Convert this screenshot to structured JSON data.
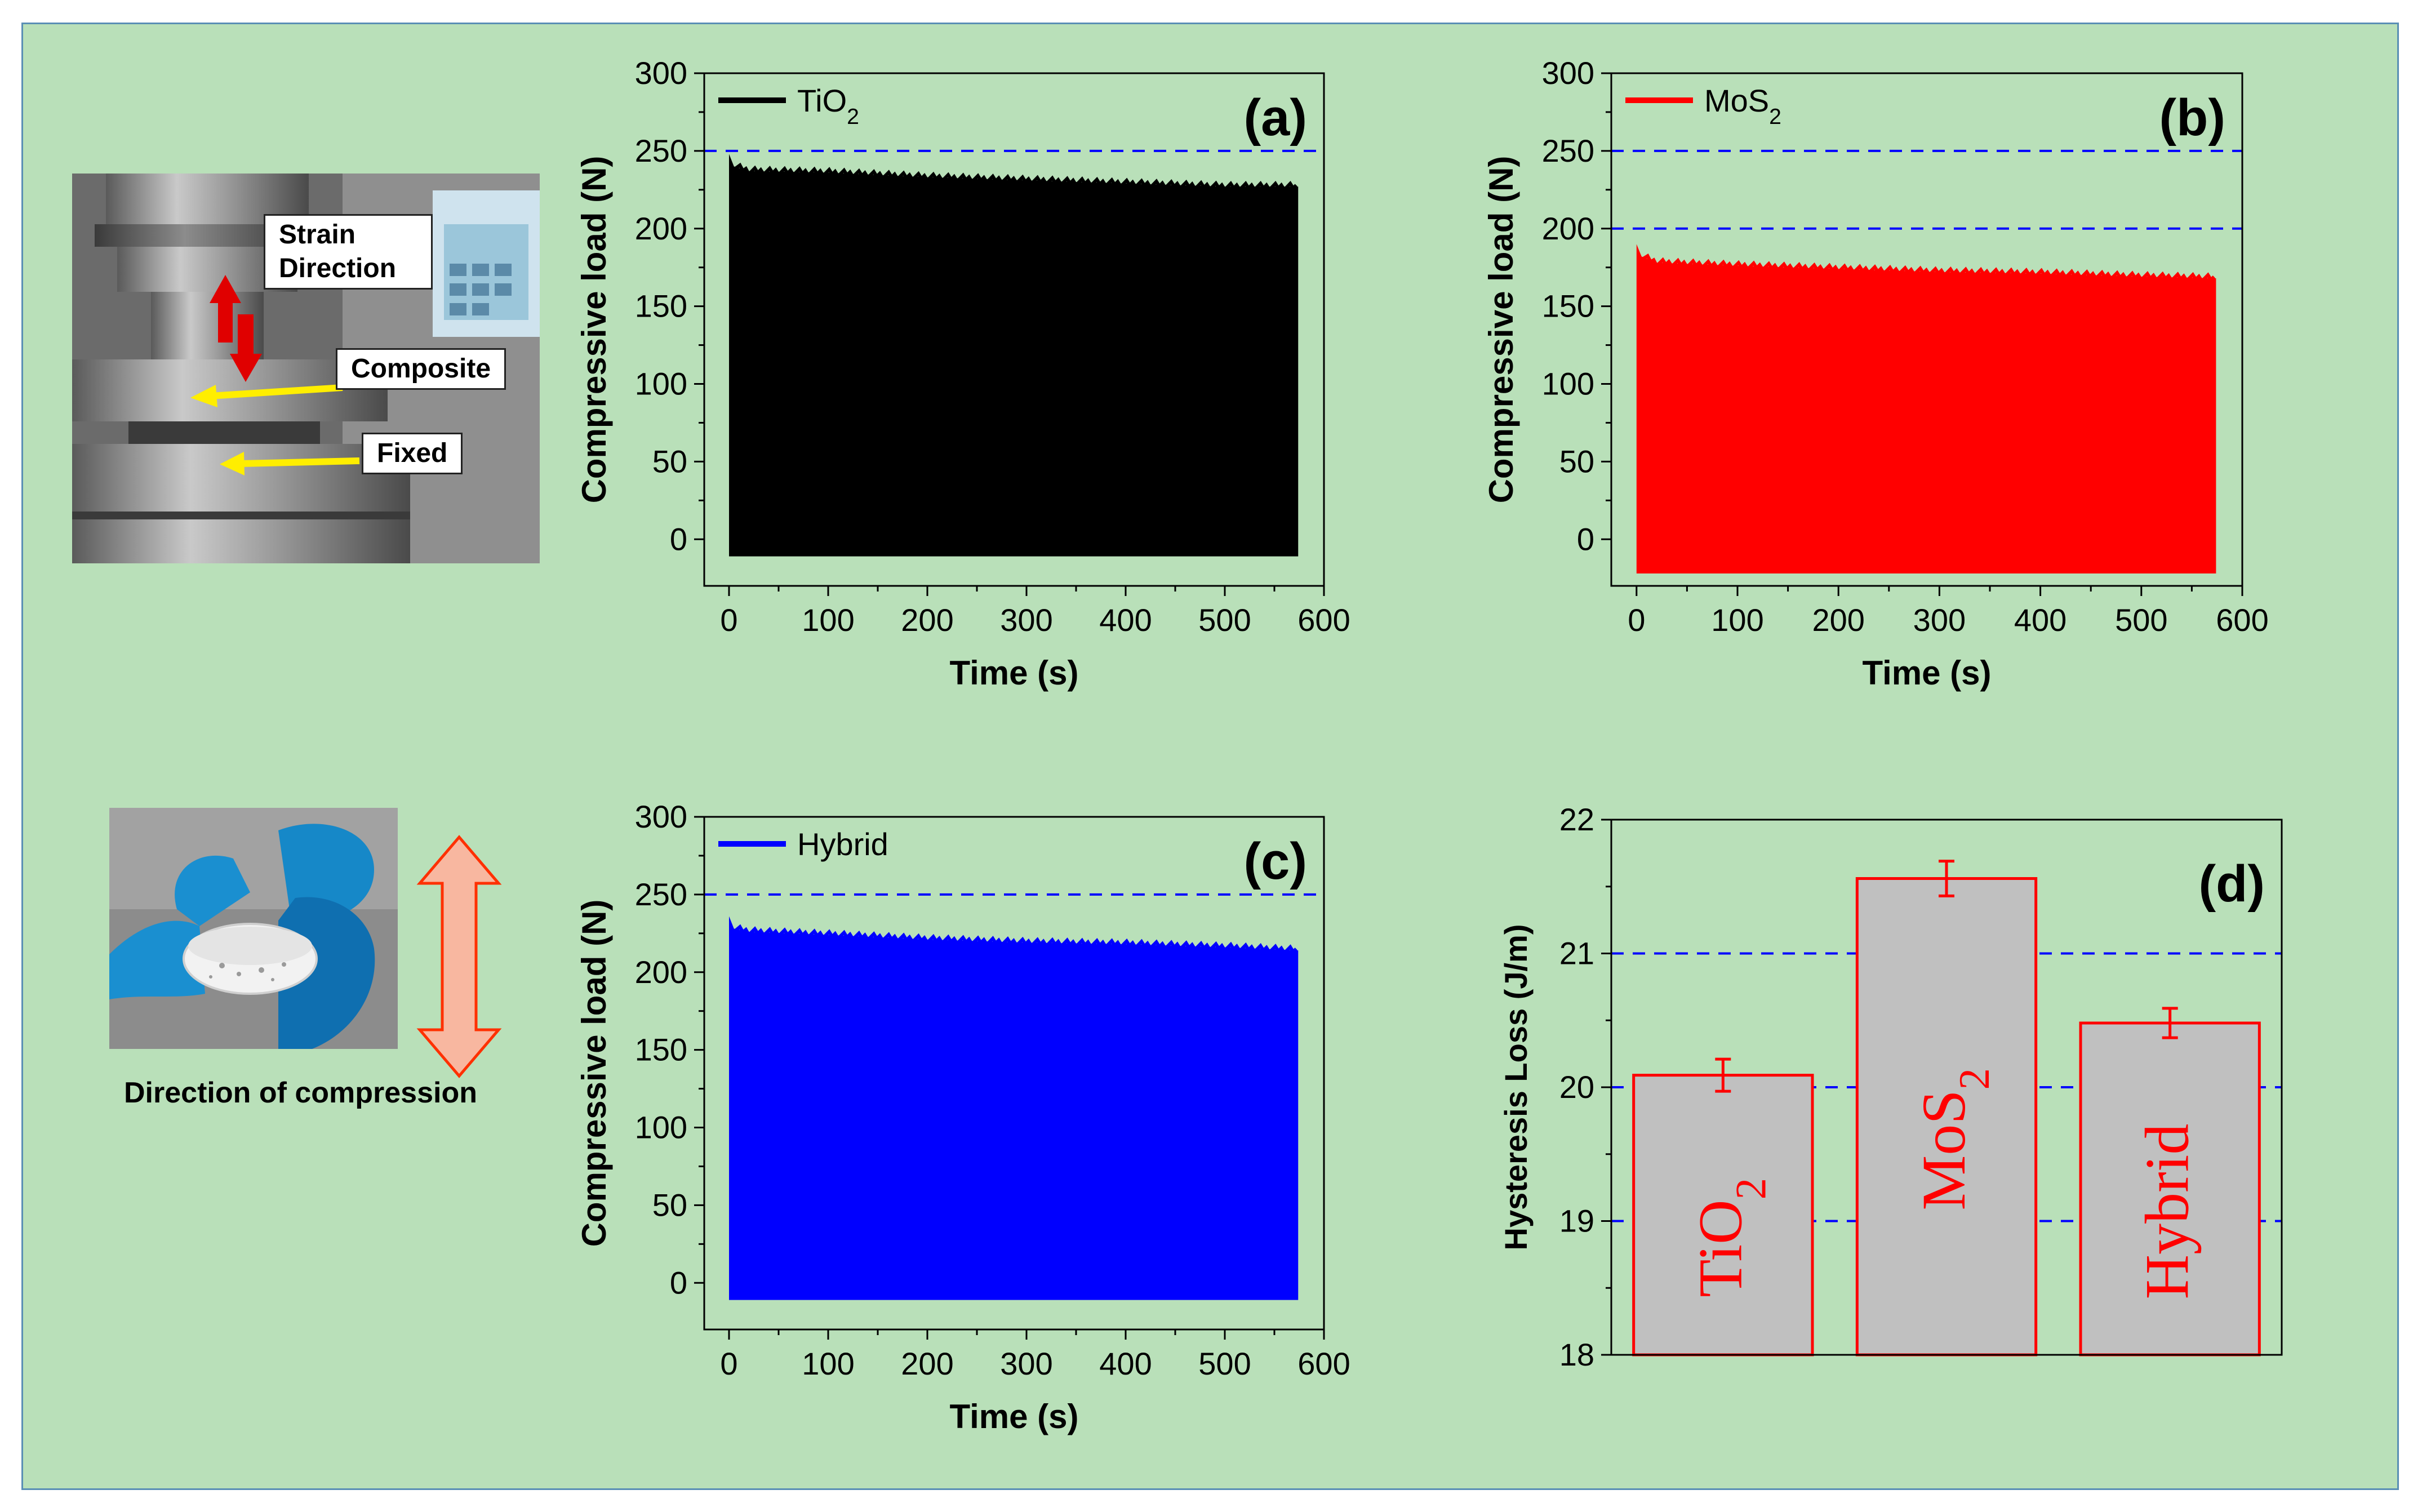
{
  "photos": {
    "machine": {
      "labels": {
        "strain": "Strain Direction",
        "composite": "Composite",
        "fixed": "Fixed"
      }
    },
    "sample": {
      "caption": "Direction of compression"
    }
  },
  "colors": {
    "background": "#b9e0b9",
    "border": "#5a8fb5",
    "tio2": "#000000",
    "mos2": "#ff0000",
    "hybrid": "#0000ff",
    "bar_fill": "#c0c0c0",
    "bar_edge": "#ff0000",
    "gridline": "#0000ff"
  },
  "chart_data": [
    {
      "id": "a",
      "panel_label": "(a)",
      "type": "area",
      "series_name": "TiO₂",
      "xlabel": "Time (s)",
      "ylabel": "Compressive load (N)",
      "xlim": [
        -25,
        600
      ],
      "ylim": [
        -30,
        300
      ],
      "xticks": [
        0,
        100,
        200,
        300,
        400,
        500,
        600
      ],
      "yticks": [
        0,
        50,
        100,
        150,
        200,
        250,
        300
      ],
      "ref_lines": [
        250
      ],
      "upper_envelope": {
        "x": [
          0,
          5,
          20,
          100,
          200,
          300,
          400,
          500,
          574
        ],
        "y": [
          248,
          240,
          237,
          236,
          233,
          231,
          229,
          227,
          227
        ]
      },
      "lower_bound": -11,
      "legend": "top-left"
    },
    {
      "id": "b",
      "panel_label": "(b)",
      "type": "area",
      "series_name": "MoS₂",
      "xlabel": "Time (s)",
      "ylabel": "Compressive load (N)",
      "xlim": [
        -25,
        600
      ],
      "ylim": [
        -30,
        300
      ],
      "xticks": [
        0,
        100,
        200,
        300,
        400,
        500,
        600
      ],
      "yticks": [
        0,
        50,
        100,
        150,
        200,
        250,
        300
      ],
      "ref_lines": [
        250,
        200
      ],
      "upper_envelope": {
        "x": [
          0,
          5,
          20,
          100,
          200,
          300,
          400,
          500,
          574
        ],
        "y": [
          190,
          182,
          178,
          176,
          174,
          172,
          171,
          169,
          168
        ]
      },
      "lower_bound": -22,
      "legend": "top-left"
    },
    {
      "id": "c",
      "panel_label": "(c)",
      "type": "area",
      "series_name": "Hybrid",
      "xlabel": "Time (s)",
      "ylabel": "Compressive load (N)",
      "xlim": [
        -25,
        600
      ],
      "ylim": [
        -30,
        300
      ],
      "xticks": [
        0,
        100,
        200,
        300,
        400,
        500,
        600
      ],
      "yticks": [
        0,
        50,
        100,
        150,
        200,
        250,
        300
      ],
      "ref_lines": [
        250
      ],
      "upper_envelope": {
        "x": [
          0,
          5,
          20,
          100,
          200,
          300,
          400,
          500,
          574
        ],
        "y": [
          236,
          228,
          226,
          224,
          221,
          219,
          218,
          216,
          214
        ]
      },
      "lower_bound": -11,
      "legend": "top-left"
    },
    {
      "id": "d",
      "panel_label": "(d)",
      "type": "bar",
      "categories": [
        "TiO₂",
        "MoS₂",
        "Hybrid"
      ],
      "values": [
        20.09,
        21.56,
        20.48
      ],
      "errors": [
        0.12,
        0.13,
        0.11
      ],
      "xlabel": "",
      "ylabel": "Hysteresis Loss (J/m)",
      "ylim": [
        18,
        22
      ],
      "yticks": [
        18,
        19,
        20,
        21,
        22
      ],
      "ref_lines": [
        19,
        20,
        21
      ]
    }
  ]
}
